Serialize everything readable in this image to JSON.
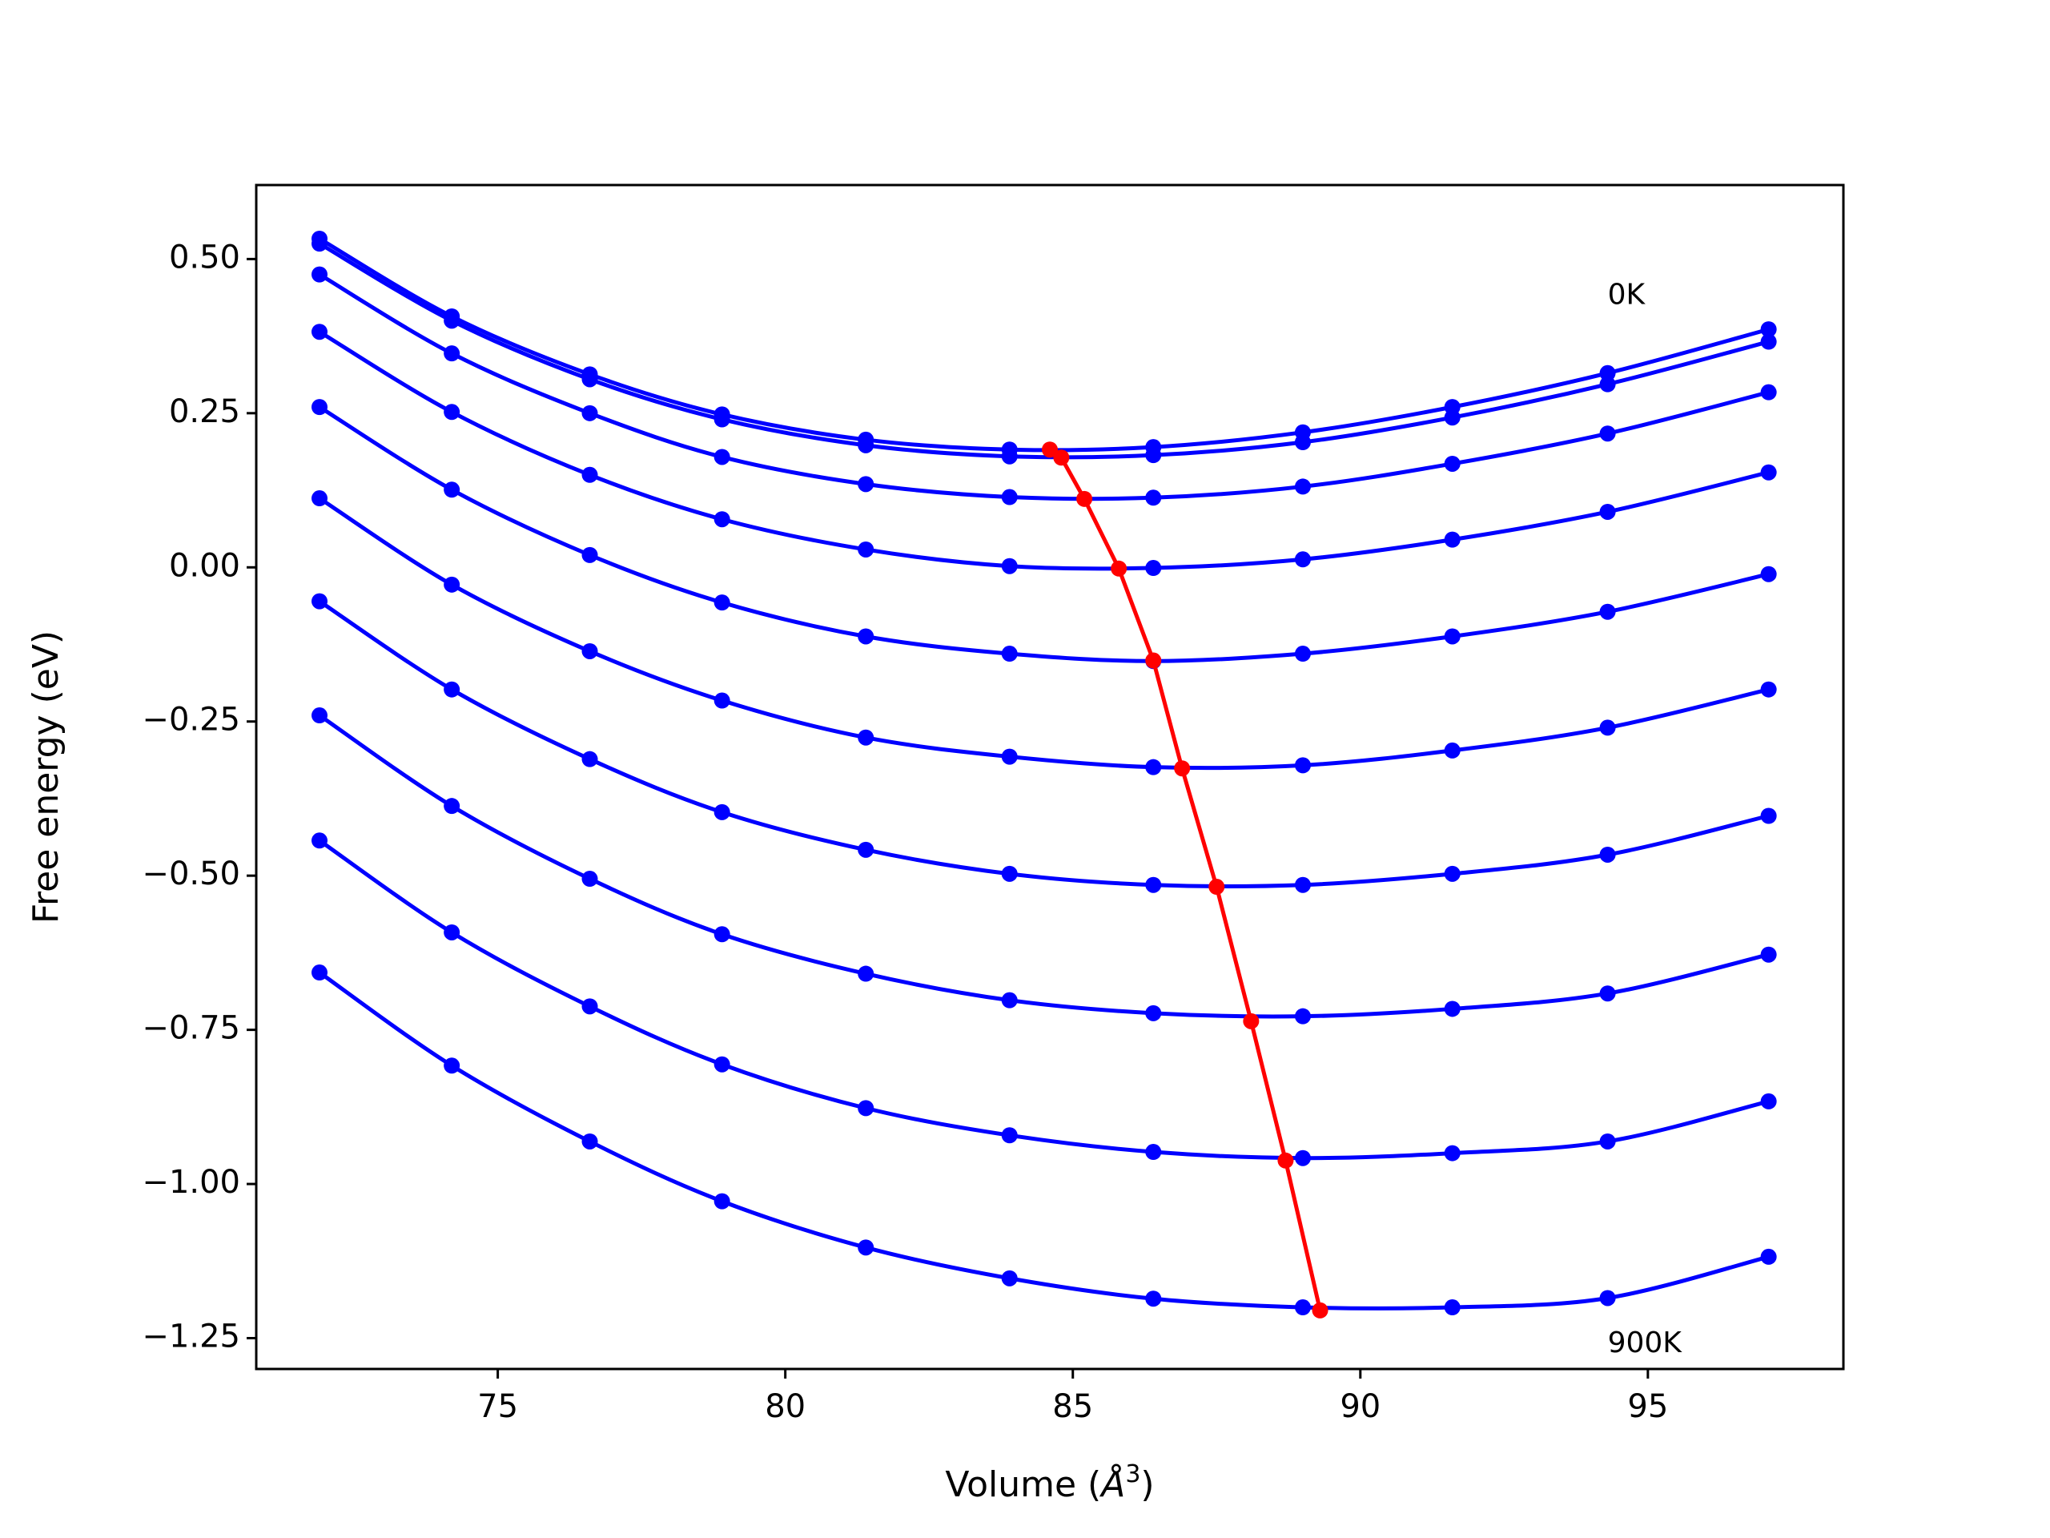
{
  "chart_data": {
    "type": "line",
    "xlabel": "Volume (",
    "xlabel_unit": "Å",
    "xlabel_exp": "3",
    "xlabel_close": ")",
    "ylabel": "Free energy (eV)",
    "xlim": [
      70.8,
      98.4
    ],
    "ylim": [
      -1.3,
      0.62
    ],
    "xticks": [
      75,
      80,
      85,
      90,
      95
    ],
    "xtick_labels": [
      "75",
      "80",
      "85",
      "90",
      "95"
    ],
    "yticks": [
      0.5,
      0.25,
      0.0,
      -0.25,
      -0.5,
      -0.75,
      -1.0,
      -1.25
    ],
    "ytick_labels": [
      "0.50",
      "0.25",
      "0.00",
      "−0.25",
      "−0.50",
      "−0.75",
      "−1.00",
      "−1.25"
    ],
    "annotations": [
      {
        "text": "0K",
        "x": 94.3,
        "y": 0.44
      },
      {
        "text": "900K",
        "x": 94.3,
        "y": -1.26
      }
    ],
    "colors": {
      "curves": "#0000ff",
      "minima": "#ff0000"
    },
    "x": [
      71.9,
      74.2,
      76.6,
      78.9,
      81.4,
      83.9,
      86.4,
      89.0,
      91.6,
      94.3,
      97.1
    ],
    "series": [
      {
        "values": [
          0.533,
          0.407,
          0.313,
          0.248,
          0.207,
          0.191,
          0.195,
          0.219,
          0.26,
          0.315,
          0.386
        ]
      },
      {
        "values": [
          0.525,
          0.4,
          0.305,
          0.24,
          0.198,
          0.18,
          0.182,
          0.203,
          0.243,
          0.297,
          0.366
        ]
      },
      {
        "values": [
          0.475,
          0.347,
          0.25,
          0.179,
          0.135,
          0.114,
          0.113,
          0.131,
          0.168,
          0.217,
          0.284
        ]
      },
      {
        "values": [
          0.382,
          0.252,
          0.15,
          0.078,
          0.029,
          0.002,
          -0.001,
          0.013,
          0.045,
          0.09,
          0.154
        ]
      },
      {
        "values": [
          0.112,
          -0.028,
          -0.136,
          -0.216,
          -0.276,
          -0.307,
          -0.324,
          -0.321,
          -0.297,
          -0.26,
          -0.198
        ]
      },
      {
        "values": [
          0.26,
          0.126,
          0.02,
          -0.057,
          -0.112,
          -0.14,
          -0.152,
          -0.14,
          -0.112,
          -0.072,
          -0.011
        ]
      },
      {
        "values": [
          -0.055,
          -0.198,
          -0.311,
          -0.397,
          -0.458,
          -0.497,
          -0.515,
          -0.515,
          -0.497,
          -0.466,
          -0.403
        ]
      },
      {
        "values": [
          -0.24,
          -0.387,
          -0.505,
          -0.595,
          -0.659,
          -0.702,
          -0.723,
          -0.728,
          -0.716,
          -0.691,
          -0.628
        ]
      },
      {
        "values": [
          -0.443,
          -0.592,
          -0.712,
          -0.806,
          -0.877,
          -0.921,
          -0.948,
          -0.958,
          -0.95,
          -0.931,
          -0.866
        ]
      },
      {
        "values": [
          -0.657,
          -0.808,
          -0.931,
          -1.028,
          -1.103,
          -1.153,
          -1.186,
          -1.2,
          -1.2,
          -1.185,
          -1.118
        ]
      }
    ],
    "minima_line": {
      "x": [
        84.6,
        84.8,
        85.2,
        85.8,
        86.4,
        86.9,
        87.5,
        88.1,
        88.7,
        89.3
      ],
      "y": [
        0.191,
        0.178,
        0.111,
        -0.002,
        -0.151,
        -0.326,
        -0.518,
        -0.736,
        -0.962,
        -1.205
      ]
    }
  }
}
